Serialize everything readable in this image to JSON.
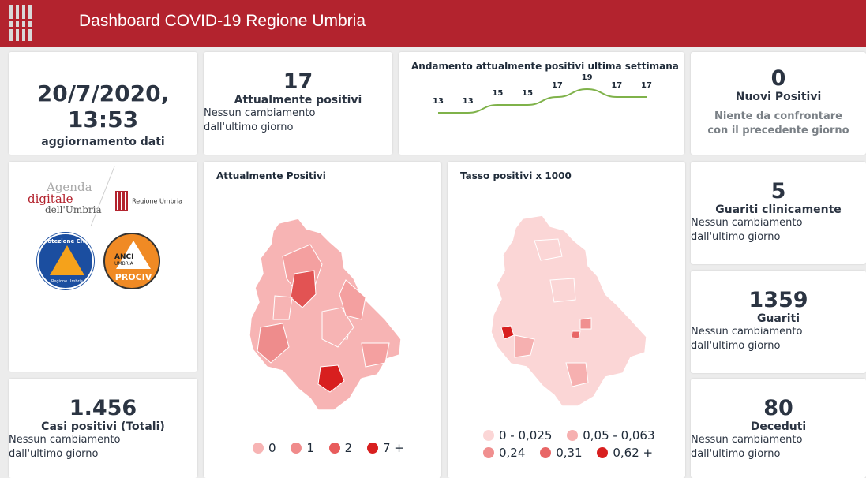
{
  "header": {
    "title": "Dashboard COVID-19 Regione Umbria"
  },
  "update_card": {
    "datetime": "20/7/2020, 13:53",
    "label": "aggiornamento dati"
  },
  "active_card": {
    "value": "17",
    "label": "Attualmente positivi",
    "note": "Nessun cambiamento dall'ultimo giorno"
  },
  "trend_card": {
    "title": "Andamento attualmente positivi ultima settimana",
    "chart_data": {
      "type": "line",
      "title": "Andamento attualmente positivi ultima settimana",
      "values": [
        13,
        13,
        15,
        15,
        17,
        19,
        17,
        17
      ],
      "color": "#7fb24a"
    }
  },
  "new_positives_card": {
    "value": "0",
    "label": "Nuovi Positivi",
    "note": "Niente da confrontare con il precedente giorno"
  },
  "logos": {
    "agenda_line1": "Agenda",
    "agenda_line2": "digitale",
    "agenda_line3": "dell'Umbria",
    "regione": "Regione Umbria",
    "protezione": "Protezione Civile",
    "protezione_sub": "Regione Umbria",
    "anci_line1": "ANCI",
    "anci_line2": "UMBRIA",
    "anci_line3": "PROCIV"
  },
  "map_active": {
    "title": "Attualmente Positivi",
    "legend": [
      {
        "label": "0",
        "color": "#f7b4b4"
      },
      {
        "label": "1",
        "color": "#f08b8b"
      },
      {
        "label": "2",
        "color": "#e85c5c"
      },
      {
        "label": "7 +",
        "color": "#d81f1f"
      }
    ]
  },
  "map_rate": {
    "title": "Tasso positivi x 1000",
    "legend": [
      {
        "label": "0 - 0,025",
        "color": "#fbd6d6"
      },
      {
        "label": "0,05 - 0,063",
        "color": "#f6b0b0"
      },
      {
        "label": "0,24",
        "color": "#f08f8f"
      },
      {
        "label": "0,31",
        "color": "#e86666"
      },
      {
        "label": "0,62 +",
        "color": "#d81f1f"
      }
    ]
  },
  "recovered_clinically_card": {
    "value": "5",
    "label": "Guariti clinicamente",
    "note": "Nessun cambiamento dall'ultimo giorno"
  },
  "recovered_card": {
    "value": "1359",
    "label": "Guariti",
    "note": "Nessun cambiamento dall'ultimo giorno"
  },
  "total_cases_card": {
    "value": "1.456",
    "label": "Casi positivi (Totali)",
    "note": "Nessun cambiamento dall'ultimo giorno"
  },
  "deaths_card": {
    "value": "80",
    "label": "Deceduti",
    "note": "Nessun cambiamento dall'ultimo giorno"
  }
}
